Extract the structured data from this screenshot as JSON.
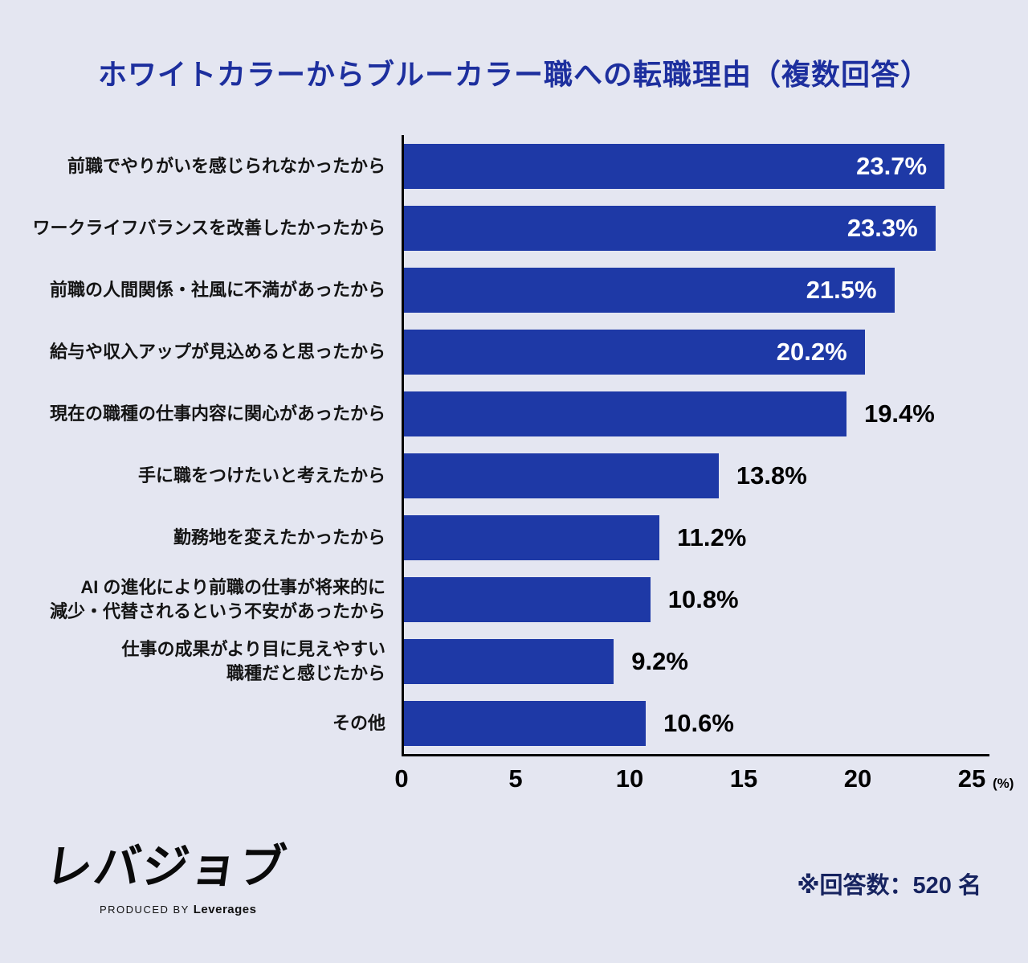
{
  "chart_data": {
    "type": "bar",
    "orientation": "horizontal",
    "title": "ホワイトカラーからブルーカラー職への転職理由（複数回答）",
    "categories": [
      "前職でやりがいを感じられなかったから",
      "ワークライフバランスを改善したかったから",
      "前職の人間関係・社風に不満があったから",
      "給与や収入アップが見込めると思ったから",
      "現在の職種の仕事内容に関心があったから",
      "手に職をつけたいと考えたから",
      "勤務地を変えたかったから",
      "AI の進化により前職の仕事が将来的に\n減少・代替されるという不安があったから",
      "仕事の成果がより目に見えやすい\n職種だと感じたから",
      "その他"
    ],
    "values": [
      23.7,
      23.3,
      21.5,
      20.2,
      19.4,
      13.8,
      11.2,
      10.8,
      9.2,
      10.6
    ],
    "value_labels": [
      "23.7%",
      "23.3%",
      "21.5%",
      "20.2%",
      "19.4%",
      "13.8%",
      "11.2%",
      "10.8%",
      "9.2%",
      "10.6%"
    ],
    "label_placement": [
      "inside",
      "inside",
      "inside",
      "inside",
      "outside",
      "outside",
      "outside",
      "outside",
      "outside",
      "outside"
    ],
    "xlim": [
      0,
      25
    ],
    "x_ticks": [
      "0",
      "5",
      "10",
      "15",
      "20",
      "25"
    ],
    "x_unit": "(%)",
    "grid": false,
    "legend": false,
    "colors": {
      "background": "#e4e6f1",
      "bar": "#1e39a6",
      "title": "#1d2f9e",
      "note": "#16235f",
      "value_inside": "#ffffff",
      "value_outside": "#000000"
    }
  },
  "footer": {
    "logo_text": "レバジョブ",
    "logo_sub_prefix": "PRODUCED BY",
    "logo_sub_brand": "Leverages",
    "note": "※回答数：520 名"
  }
}
